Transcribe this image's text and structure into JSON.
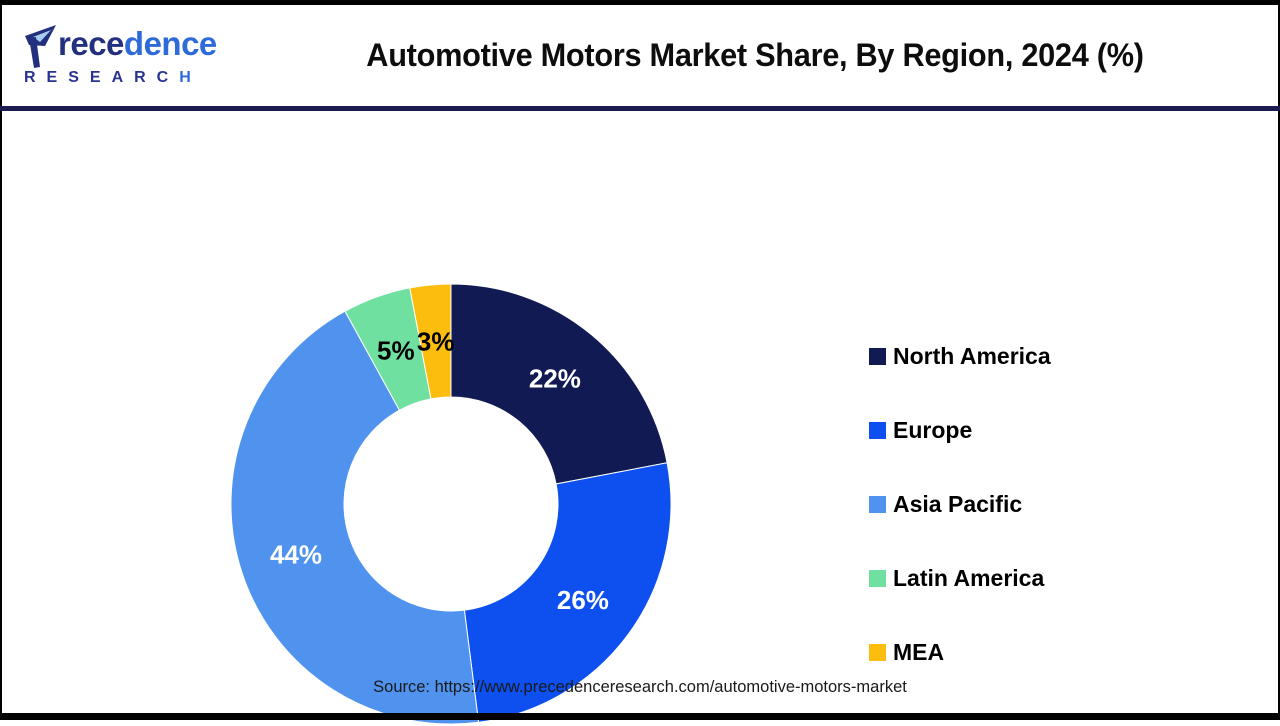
{
  "header": {
    "logo": {
      "word_navy": "rece",
      "word_blue": "dence",
      "sub_navy": "RESEARC",
      "sub_blue": "H"
    },
    "title": "Automotive Motors Market Share, By Region, 2024 (%)"
  },
  "chart_data": {
    "type": "pie",
    "donut": true,
    "title": "Automotive Motors Market Share, By Region, 2024 (%)",
    "start_angle_deg": 0,
    "direction": "clockwise",
    "inner_radius_ratio": 0.487,
    "legend_position": "right",
    "slices": [
      {
        "label": "North America",
        "value": 22,
        "display": "22%",
        "color": "#121a53",
        "label_color": "#ffffff"
      },
      {
        "label": "Europe",
        "value": 26,
        "display": "26%",
        "color": "#0d50ef",
        "label_color": "#ffffff"
      },
      {
        "label": "Asia Pacific",
        "value": 44,
        "display": "44%",
        "color": "#4f93ee",
        "label_color": "#ffffff"
      },
      {
        "label": "Latin America",
        "value": 5,
        "display": "5%",
        "color": "#70e0a0",
        "label_color": "#000000"
      },
      {
        "label": "MEA",
        "value": 3,
        "display": "3%",
        "color": "#fcbd0f",
        "label_color": "#000000"
      }
    ]
  },
  "footer": {
    "source": "Source: https://www.precedenceresearch.com/automotive-motors-market"
  },
  "colors": {
    "frame": "#000000",
    "divider": "#1b1b4e",
    "logo_navy": "#22307e",
    "logo_blue": "#2e6bd8",
    "logo_leaf": "#a9cdf2"
  }
}
